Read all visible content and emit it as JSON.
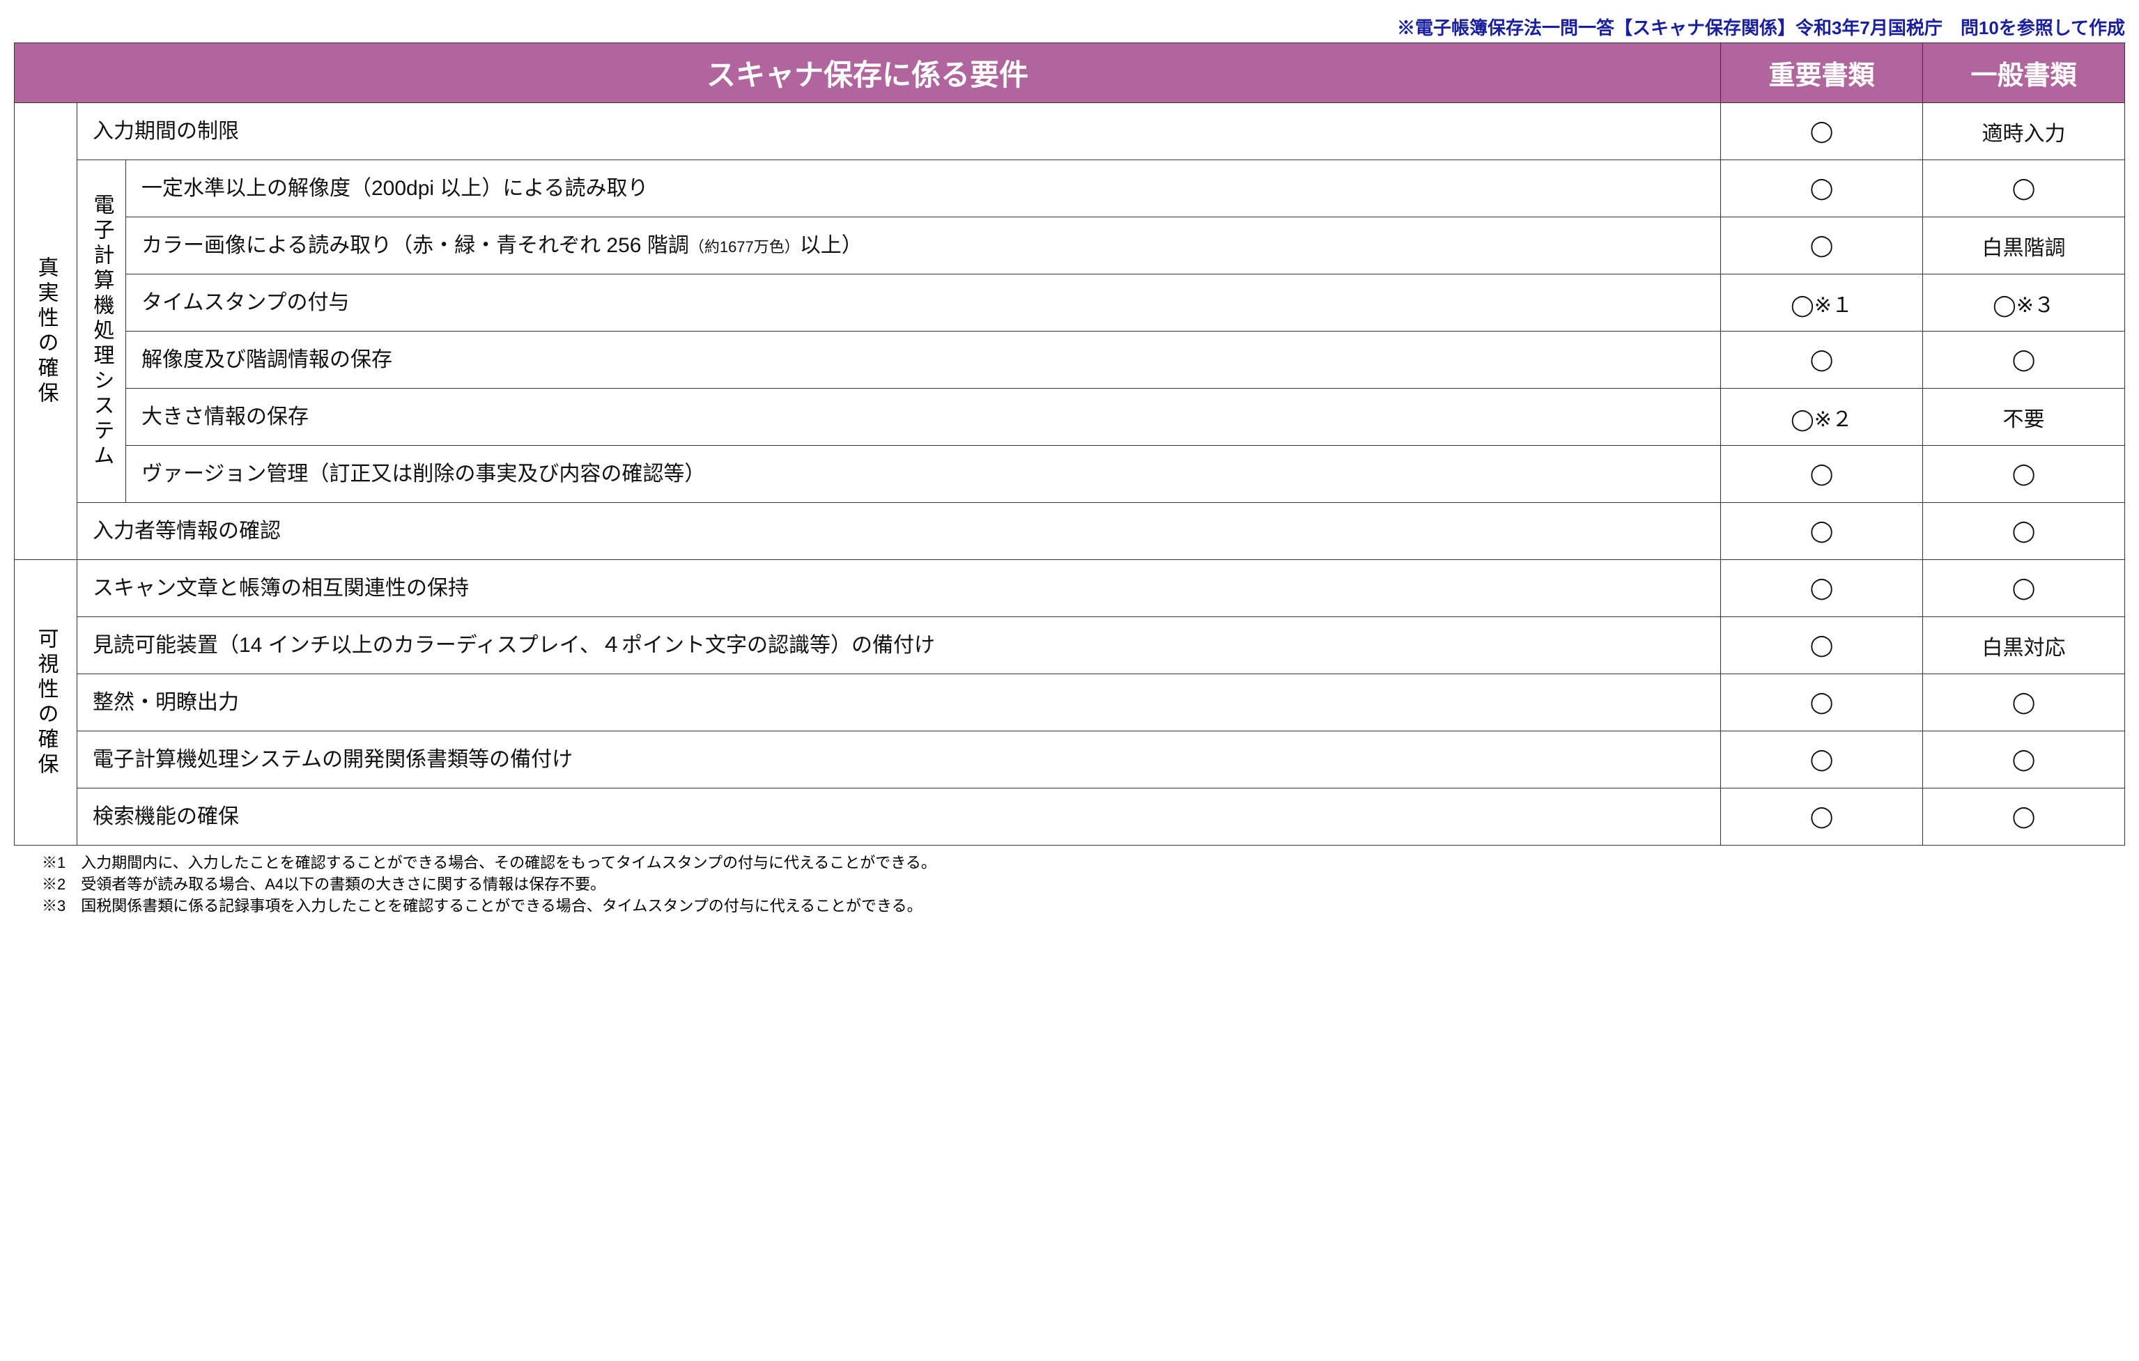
{
  "caption": "※電子帳簿保存法一問一答【スキャナ保存関係】令和3年7月国税庁　問10を参照して作成",
  "headers": {
    "requirements": "スキャナ保存に係る要件",
    "important": "重要書類",
    "general": "一般書類"
  },
  "colors": {
    "header_bg": "#b0669c",
    "header_fg": "#ffffff",
    "border": "#333333",
    "caption": "#1a1fa0",
    "text": "#111111"
  },
  "categories": [
    {
      "id": "authenticity",
      "label": "真実性の確保"
    },
    {
      "id": "visibility",
      "label": "可視性の確保"
    }
  ],
  "system_label": "電子計算機処理システム",
  "rows": [
    {
      "cat": "authenticity",
      "system": false,
      "req": "入力期間の制限",
      "important": "◯",
      "general": "適時入力"
    },
    {
      "cat": "authenticity",
      "system": true,
      "req": "一定水準以上の解像度（200dpi 以上）による読み取り",
      "important": "◯",
      "general": "◯"
    },
    {
      "cat": "authenticity",
      "system": true,
      "req": "カラー画像による読み取り（赤・緑・青それぞれ 256 階調",
      "req_small": "（約1677万色）",
      "req_tail": "以上）",
      "important": "◯",
      "general": "白黒階調"
    },
    {
      "cat": "authenticity",
      "system": true,
      "req": "タイムスタンプの付与",
      "important": "◯※１",
      "general": "◯※３"
    },
    {
      "cat": "authenticity",
      "system": true,
      "req": "解像度及び階調情報の保存",
      "important": "◯",
      "general": "◯"
    },
    {
      "cat": "authenticity",
      "system": true,
      "req": "大きさ情報の保存",
      "important": "◯※２",
      "general": "不要"
    },
    {
      "cat": "authenticity",
      "system": true,
      "req": "ヴァージョン管理（訂正又は削除の事実及び内容の確認等）",
      "important": "◯",
      "general": "◯"
    },
    {
      "cat": "authenticity",
      "system": false,
      "req": "入力者等情報の確認",
      "important": "◯",
      "general": "◯"
    },
    {
      "cat": "visibility",
      "system": false,
      "req": "スキャン文章と帳簿の相互関連性の保持",
      "important": "◯",
      "general": "◯"
    },
    {
      "cat": "visibility",
      "system": false,
      "req": "見読可能装置（14 インチ以上のカラーディスプレイ、４ポイント文字の認識等）の備付け",
      "important": "◯",
      "general": "白黒対応"
    },
    {
      "cat": "visibility",
      "system": false,
      "req": "整然・明瞭出力",
      "important": "◯",
      "general": "◯"
    },
    {
      "cat": "visibility",
      "system": false,
      "req": "電子計算機処理システムの開発関係書類等の備付け",
      "important": "◯",
      "general": "◯"
    },
    {
      "cat": "visibility",
      "system": false,
      "req": "検索機能の確保",
      "important": "◯",
      "general": "◯"
    }
  ],
  "footnotes": [
    "※1　入力期間内に、入力したことを確認することができる場合、その確認をもってタイムスタンプの付与に代えることができる。",
    "※2　受領者等が読み取る場合、A4以下の書類の大きさに関する情報は保存不要。",
    "※3　国税関係書類に係る記録事項を入力したことを確認することができる場合、タイムスタンプの付与に代えることができる。"
  ]
}
